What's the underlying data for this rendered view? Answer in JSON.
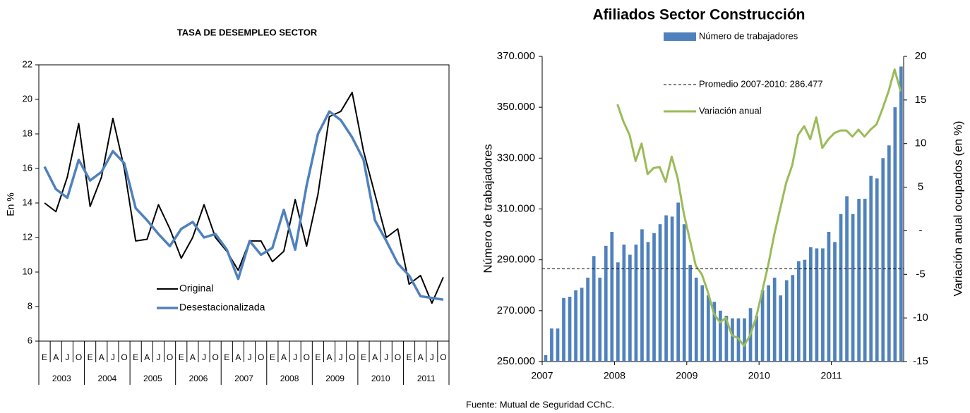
{
  "chart_data": [
    {
      "type": "line",
      "title": "TASA DE DESEMPLEO SECTOR",
      "y_label": "En %",
      "categories": [
        "E",
        "A",
        "J",
        "O",
        "E",
        "A",
        "J",
        "O",
        "E",
        "A",
        "J",
        "O",
        "E",
        "A",
        "J",
        "O",
        "E",
        "A",
        "J",
        "O",
        "E",
        "A",
        "J",
        "O",
        "E",
        "A",
        "J",
        "O",
        "E",
        "A",
        "J",
        "O",
        "E",
        "A",
        "J",
        "O"
      ],
      "years": [
        "2003",
        "2004",
        "2005",
        "2006",
        "2007",
        "2008",
        "2009",
        "2010",
        "2011"
      ],
      "ylim": [
        6,
        22
      ],
      "yticks": [
        6,
        8,
        10,
        12,
        14,
        16,
        18,
        20,
        22
      ],
      "series": [
        {
          "name": "Original",
          "color": "#000000",
          "width": 2,
          "values": [
            14.0,
            13.5,
            15.5,
            18.6,
            13.8,
            15.5,
            18.9,
            16.0,
            11.8,
            11.9,
            13.9,
            12.5,
            10.8,
            12.0,
            13.9,
            12.0,
            11.2,
            10.1,
            11.8,
            11.8,
            10.6,
            11.2,
            14.2,
            11.5,
            14.5,
            19.0,
            19.3,
            20.4,
            17.0,
            14.5,
            12.0,
            12.5,
            9.3,
            9.8,
            8.2,
            9.7
          ]
        },
        {
          "name": "Desestacionalizada",
          "color": "#4f81bd",
          "width": 3.5,
          "values": [
            16.1,
            14.8,
            14.3,
            16.5,
            15.3,
            15.8,
            17.0,
            16.3,
            13.7,
            13.0,
            12.2,
            11.5,
            12.5,
            12.9,
            12.0,
            12.2,
            11.3,
            9.6,
            11.8,
            11.0,
            11.4,
            13.6,
            11.3,
            15.0,
            18.0,
            19.3,
            18.8,
            17.8,
            16.5,
            13.0,
            11.8,
            10.5,
            9.8,
            8.6,
            8.5,
            8.4
          ]
        }
      ]
    },
    {
      "type": "bar-line",
      "title": "Afiliados Sector Construcción",
      "y_label": "Número de trabajadores",
      "y2_label": "Variación anual ocupados (en %)",
      "source": "Fuente: Mutual de Seguridad CChC.",
      "categories": [
        "2007",
        null,
        null,
        null,
        null,
        null,
        null,
        null,
        null,
        null,
        null,
        null,
        "2008",
        null,
        null,
        null,
        null,
        null,
        null,
        null,
        null,
        null,
        null,
        null,
        "2009",
        null,
        null,
        null,
        null,
        null,
        null,
        null,
        null,
        null,
        null,
        null,
        "2010",
        null,
        null,
        null,
        null,
        null,
        null,
        null,
        null,
        null,
        null,
        null,
        "2011",
        null,
        null,
        null,
        null,
        null,
        null,
        null,
        null,
        null,
        null,
        null
      ],
      "ylim": [
        250000,
        370000
      ],
      "yticks": [
        {
          "value": 250000,
          "label": "250.000"
        },
        {
          "value": 270000,
          "label": "270.000"
        },
        {
          "value": 290000,
          "label": "290.000"
        },
        {
          "value": 310000,
          "label": "310.000"
        },
        {
          "value": 330000,
          "label": "330.000"
        },
        {
          "value": 350000,
          "label": "350.000"
        },
        {
          "value": 370000,
          "label": "370.000"
        }
      ],
      "y2lim": [
        -15,
        20
      ],
      "y2ticks": [
        -15,
        -10,
        -5,
        {
          "value": 0,
          "label": "-"
        },
        5,
        10,
        15,
        20
      ],
      "reference_line": {
        "name": "Promedio 2007-2010:  286.477",
        "value": 286477,
        "color": "#000000"
      },
      "series": [
        {
          "name": "Número de trabajadores",
          "kind": "bar",
          "color": "#4f81bd",
          "values": [
            252500,
            263000,
            263000,
            275000,
            275500,
            278000,
            279000,
            283000,
            291500,
            283000,
            295500,
            301000,
            289000,
            296000,
            292000,
            296000,
            302000,
            297000,
            300500,
            304000,
            307500,
            307000,
            312500,
            304000,
            288000,
            283000,
            280000,
            276000,
            273500,
            270000,
            268000,
            267000,
            267000,
            267000,
            271000,
            268000,
            278000,
            280000,
            283000,
            276000,
            282000,
            284000,
            289500,
            290000,
            295000,
            294500,
            294500,
            301000,
            297000,
            308000,
            315000,
            308000,
            314000,
            314000,
            323000,
            322000,
            330000,
            335000,
            350000,
            366000
          ]
        },
        {
          "name": "Variación anual",
          "kind": "line",
          "axis": "y2",
          "color": "#9bbb59",
          "values": [
            null,
            null,
            null,
            null,
            null,
            null,
            null,
            null,
            null,
            null,
            null,
            null,
            14.5,
            12.5,
            11,
            8,
            10,
            6.5,
            7.2,
            7.3,
            5.6,
            8.5,
            6,
            2,
            -1,
            -4,
            -5,
            -7,
            -9.5,
            -10.5,
            -10,
            -12,
            -12.3,
            -13.2,
            -12,
            -10,
            -7,
            -4,
            -0.5,
            2.5,
            5.5,
            7.5,
            11,
            12,
            10.5,
            13,
            9.5,
            10.5,
            11.2,
            11.5,
            11.5,
            10.8,
            11.6,
            10.8,
            11.6,
            12.2,
            14,
            16,
            18.5,
            16
          ]
        }
      ]
    }
  ]
}
